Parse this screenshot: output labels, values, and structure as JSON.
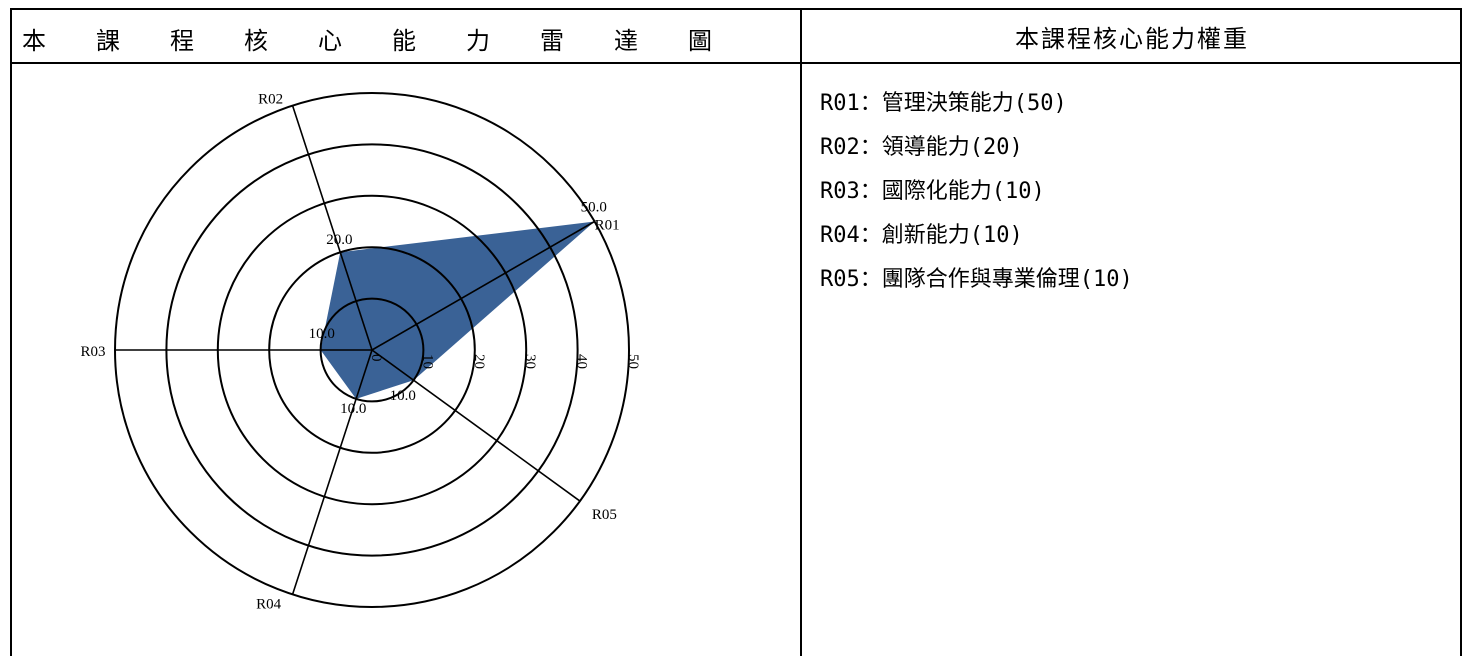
{
  "header": {
    "radar_title_chars": [
      "本",
      "課",
      "程",
      "核",
      "心",
      "能",
      "力",
      "雷",
      "達",
      "圖"
    ],
    "weights_title": "本課程核心能力權重"
  },
  "weights": [
    "R01：管理決策能力(50)",
    "R02：領導能力(20)",
    "R03：國際化能力(10)",
    "R04：創新能力(10)",
    "R05：團隊合作與專業倫理(10)"
  ],
  "chart_data": {
    "type": "radar",
    "axes": [
      "R01",
      "R02",
      "R03",
      "R04",
      "R05"
    ],
    "values": [
      50,
      20,
      10,
      10,
      10
    ],
    "value_labels": [
      "50.0",
      "20.0",
      "10.0",
      "10.0",
      "10.0"
    ],
    "radial_ticks": [
      0,
      10,
      20,
      30,
      40,
      50
    ],
    "radial_tick_labels": [
      "0",
      "10",
      "20",
      "30",
      "40",
      "50"
    ],
    "rlim": [
      0,
      50
    ],
    "fill_color": "#3a6296"
  }
}
